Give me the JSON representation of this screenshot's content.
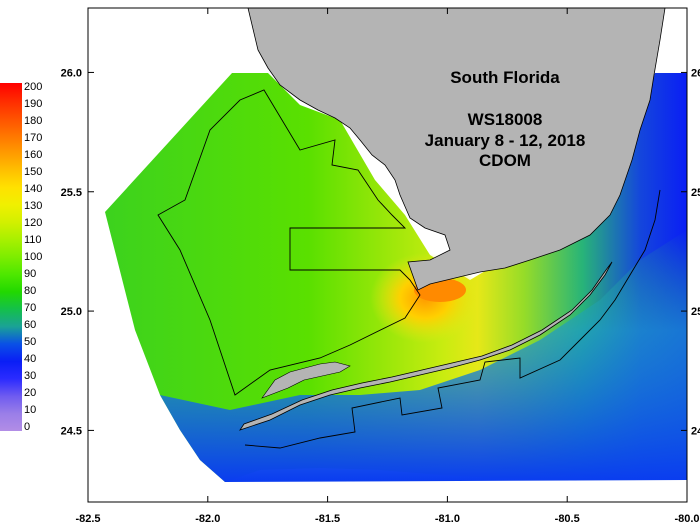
{
  "map": {
    "title_lines": [
      "South Florida",
      "WS18008",
      "January 8 - 12, 2018",
      "CDOM"
    ],
    "x_ticks": [
      "-82.5",
      "-82.0",
      "-81.5",
      "-81.0",
      "-80.5",
      "-80.0"
    ],
    "y_ticks": [
      "26.0",
      "25.5",
      "25.0",
      "24.5"
    ],
    "x_range": [
      -82.5,
      -80.0
    ],
    "y_range": [
      24.2,
      26.27
    ],
    "colorbar": {
      "labels": [
        "200",
        "190",
        "180",
        "170",
        "160",
        "150",
        "140",
        "130",
        "120",
        "110",
        "100",
        "90",
        "80",
        "70",
        "60",
        "50",
        "40",
        "30",
        "20",
        "10",
        "0"
      ],
      "colors": [
        "#ff0000",
        "#ff2a00",
        "#ff5000",
        "#ff7500",
        "#ff9a00",
        "#ffbf00",
        "#ffe100",
        "#f0f000",
        "#d2f000",
        "#a8f000",
        "#7ded00",
        "#4ee800",
        "#22d800",
        "#14c04a",
        "#1aa296",
        "#0a50e6",
        "#0a1ef5",
        "#2b2bff",
        "#6f5bf0",
        "#9a7ee8",
        "#b28de6"
      ],
      "min": 0,
      "max": 200
    },
    "colors": {
      "land": "#b4b4b4",
      "background": "#ffffff",
      "outline": "#000000"
    }
  }
}
